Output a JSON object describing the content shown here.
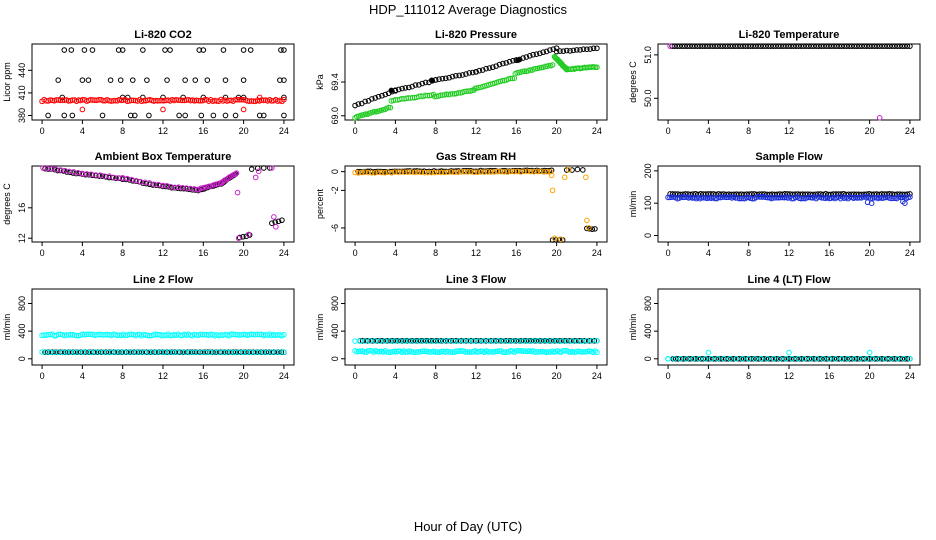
{
  "figure": {
    "title": "HDP_111012  Average Diagnostics",
    "xlabel": "Hour of Day (UTC)"
  },
  "chart_data": [
    {
      "type": "scatter",
      "title": "Li-820 CO2",
      "ylabel": "Licor ppm",
      "xlim": [
        -1,
        25
      ],
      "ylim": [
        374,
        475
      ],
      "xticks": [
        0,
        4,
        8,
        12,
        16,
        20,
        24
      ],
      "yticks": [
        380,
        410,
        440
      ],
      "yticklabels": [
        "380",
        "410",
        "440"
      ],
      "series": [
        {
          "color": "#000000",
          "x": [
            2.2,
            2.9,
            4.2,
            5.0,
            7.6,
            8.0,
            10.0,
            12.2,
            12.7,
            15.6,
            16.0,
            18.0,
            20.0,
            20.7,
            23.7,
            24.0
          ],
          "y": [
            467,
            467,
            467,
            467,
            467,
            467,
            467,
            467,
            467,
            467,
            467,
            467,
            467,
            467,
            467,
            467
          ]
        },
        {
          "color": "#000000",
          "x": [
            1.6,
            4.0,
            4.6,
            6.8,
            7.8,
            9.0,
            10.4,
            12.4,
            14.2,
            15.2,
            16.4,
            18.2,
            20.0,
            23.6,
            24.0
          ],
          "y": [
            427,
            427,
            427,
            427,
            427,
            427,
            427,
            427,
            427,
            427,
            427,
            427,
            427,
            427,
            427
          ]
        },
        {
          "color": "#000000",
          "x": [
            2.0,
            8.0,
            8.5,
            10.0,
            12.0,
            14.0,
            16.0,
            18.2,
            19.5,
            20.0,
            24.0
          ],
          "y": [
            404,
            404,
            404,
            404,
            404,
            404,
            404,
            404,
            404,
            404,
            404
          ]
        },
        {
          "color": "#000000",
          "x": [
            0.6,
            2.2,
            3.0,
            6.0,
            8.8,
            9.2,
            10.6,
            13.6,
            14.2,
            15.8,
            17.0,
            18.2,
            19.2,
            21.6,
            22.0,
            24.0
          ],
          "y": [
            380,
            380,
            380,
            380,
            380,
            380,
            380,
            380,
            380,
            380,
            380,
            380,
            380,
            380,
            380,
            380
          ]
        },
        {
          "color": "#ff0000",
          "dense": true,
          "xrange": [
            0,
            24
          ],
          "y": 400,
          "jitter": 1.2,
          "n": 120
        },
        {
          "color": "#ff0000",
          "x": [
            4.0,
            12.0,
            20.0,
            21.6
          ],
          "y": [
            388,
            388,
            388,
            404
          ]
        }
      ]
    },
    {
      "type": "scatter",
      "title": "Li-820 Pressure",
      "ylabel": "kPa",
      "xlim": [
        -1,
        25
      ],
      "ylim": [
        68.95,
        69.85
      ],
      "xticks": [
        0,
        4,
        8,
        12,
        16,
        20,
        24
      ],
      "yticks": [
        69.0,
        69.4
      ],
      "yticklabels": [
        "69.0",
        "69.4"
      ],
      "series": [
        {
          "color": "#000000",
          "segments": [
            [
              0,
              69.12,
              4,
              69.3
            ],
            [
              4,
              69.3,
              8,
              69.42
            ],
            [
              8,
              69.42,
              12,
              69.52
            ],
            [
              12,
              69.52,
              16,
              69.66
            ],
            [
              16,
              69.66,
              20,
              69.8
            ],
            [
              20,
              69.76,
              24,
              69.8
            ]
          ],
          "n": 75
        },
        {
          "color": "#22cc22",
          "segments": [
            [
              0,
              68.98,
              3.5,
              69.1
            ],
            [
              3.6,
              69.18,
              7.8,
              69.25
            ],
            [
              7.9,
              69.23,
              11.8,
              69.3
            ],
            [
              11.9,
              69.32,
              15.8,
              69.45
            ],
            [
              15.9,
              69.5,
              19.6,
              69.6
            ],
            [
              19.8,
              69.7,
              21.0,
              69.55
            ],
            [
              21.0,
              69.55,
              24,
              69.58
            ]
          ],
          "n": 150
        },
        {
          "color": "#000000",
          "x": [
            3.6,
            7.6,
            16.2
          ],
          "y": [
            69.3,
            69.42,
            69.66
          ],
          "filled": true
        }
      ]
    },
    {
      "type": "scatter",
      "title": "Li-820 Temperature",
      "ylabel": "degrees C",
      "xlim": [
        -1,
        25
      ],
      "ylim": [
        49.5,
        51.25
      ],
      "xticks": [
        0,
        4,
        8,
        12,
        16,
        20,
        24
      ],
      "yticks": [
        50.0,
        51.0
      ],
      "yticklabels": [
        "50.0",
        "51.0"
      ],
      "series": [
        {
          "color": "#000000",
          "dense": true,
          "xrange": [
            0.4,
            24
          ],
          "y": 51.2,
          "jitter": 0,
          "n": 95
        },
        {
          "color": "#cc22cc",
          "x": [
            0.2,
            21.0
          ],
          "y": [
            51.2,
            49.55
          ]
        }
      ]
    },
    {
      "type": "scatter",
      "title": "Ambient Box Temperature",
      "ylabel": "degrees C",
      "xlim": [
        -1,
        25
      ],
      "ylim": [
        11.5,
        21.5
      ],
      "xticks": [
        0,
        4,
        8,
        12,
        16,
        20,
        24
      ],
      "yticks": [
        12,
        16
      ],
      "yticklabels": [
        "12",
        "16"
      ],
      "series": [
        {
          "color": "#000000",
          "segments": [
            [
              0.3,
              21.2,
              4,
              20.4
            ],
            [
              4,
              20.4,
              8,
              19.8
            ],
            [
              8,
              19.8,
              12,
              18.8
            ],
            [
              12,
              18.8,
              15.5,
              18.3
            ],
            [
              15.5,
              18.3,
              17.8,
              19.2
            ],
            [
              17.8,
              19.2,
              19.2,
              20.5
            ]
          ],
          "n": 75
        },
        {
          "color": "#000000",
          "segments": [
            [
              19.6,
              12.1,
              20.6,
              12.4
            ],
            [
              20.8,
              21.1,
              22.6,
              21.4
            ],
            [
              22.8,
              14.0,
              23.8,
              14.4
            ]
          ],
          "n": 12
        },
        {
          "color": "#cc22cc",
          "segments": [
            [
              0.1,
              21.3,
              4,
              20.5
            ],
            [
              4,
              20.5,
              8,
              19.9
            ],
            [
              8,
              19.9,
              12,
              18.9
            ],
            [
              12,
              18.9,
              15.5,
              18.4
            ],
            [
              15.5,
              18.4,
              17.8,
              19.3
            ],
            [
              17.8,
              19.3,
              19.3,
              20.6
            ]
          ],
          "n": 60
        },
        {
          "color": "#cc22cc",
          "x": [
            19.4,
            19.5,
            20.5,
            21.2,
            21.5,
            22.8,
            23.0,
            23.2
          ],
          "y": [
            18.0,
            12.0,
            12.5,
            20.0,
            20.8,
            21.6,
            14.8,
            13.5
          ]
        }
      ]
    },
    {
      "type": "scatter",
      "title": "Gas Stream RH",
      "ylabel": "percent",
      "xlim": [
        -1,
        25
      ],
      "ylim": [
        -7.5,
        0.6
      ],
      "xticks": [
        0,
        4,
        8,
        12,
        16,
        20,
        24
      ],
      "yticks": [
        -6,
        -2,
        0
      ],
      "yticklabels": [
        "-6",
        "-2",
        "0"
      ],
      "series": [
        {
          "color": "#000000",
          "segments": [
            [
              0.3,
              0.0,
              19.5,
              0.1
            ]
          ],
          "n": 80
        },
        {
          "color": "#000000",
          "segments": [
            [
              19.6,
              -7.4,
              20.6,
              -7.4
            ],
            [
              21.0,
              0.2,
              22.6,
              0.2
            ],
            [
              23.0,
              -6.1,
              23.8,
              -6.1
            ]
          ],
          "n": 12
        },
        {
          "color": "#ffa500",
          "segments": [
            [
              0.0,
              -0.1,
              19.4,
              0.0
            ]
          ],
          "n": 60
        },
        {
          "color": "#ffa500",
          "x": [
            19.5,
            19.6,
            19.8,
            20.4,
            20.8,
            21.2,
            22.9,
            23.0,
            23.2
          ],
          "y": [
            -0.4,
            -2.0,
            -7.1,
            -7.2,
            -0.6,
            0.2,
            -0.6,
            -5.2,
            -6.0
          ]
        }
      ]
    },
    {
      "type": "scatter",
      "title": "Sample Flow",
      "ylabel": "ml/min",
      "xlim": [
        -1,
        25
      ],
      "ylim": [
        -20,
        215
      ],
      "xticks": [
        0,
        4,
        8,
        12,
        16,
        20,
        24
      ],
      "yticks": [
        0,
        100,
        200
      ],
      "yticklabels": [
        "0",
        "100",
        "200"
      ],
      "series": [
        {
          "color": "#000000",
          "dense": true,
          "xrange": [
            0.2,
            24
          ],
          "y": 128,
          "jitter": 1,
          "n": 95
        },
        {
          "color": "#1a2ed9",
          "dense": true,
          "xrange": [
            0,
            24
          ],
          "y": 117,
          "jitter": 3,
          "n": 130
        },
        {
          "color": "#1a2ed9",
          "x": [
            19.8,
            20.2,
            23.3,
            23.5
          ],
          "y": [
            103,
            100,
            105,
            100
          ]
        }
      ]
    },
    {
      "type": "scatter",
      "title": "Line 2 Flow",
      "ylabel": "ml/min",
      "xlim": [
        -1,
        25
      ],
      "ylim": [
        -90,
        1010
      ],
      "xticks": [
        0,
        4,
        8,
        12,
        16,
        20,
        24
      ],
      "yticks": [
        0,
        400,
        800
      ],
      "yticklabels": [
        "0",
        "400",
        "800"
      ],
      "series": [
        {
          "color": "#00ffff",
          "dense": true,
          "xrange": [
            0,
            24
          ],
          "y": 345,
          "jitter": 12,
          "n": 120
        },
        {
          "color": "#000000",
          "dense": true,
          "xrange": [
            0.3,
            24
          ],
          "y": 95,
          "jitter": 0,
          "n": 95
        },
        {
          "color": "#00ffff",
          "dense": true,
          "xrange": [
            0,
            24
          ],
          "y": 95,
          "jitter": 3,
          "n": 60
        }
      ]
    },
    {
      "type": "scatter",
      "title": "Line 3 Flow",
      "ylabel": "ml/min",
      "xlim": [
        -1,
        25
      ],
      "ylim": [
        -90,
        1010
      ],
      "xticks": [
        0,
        4,
        8,
        12,
        16,
        20,
        24
      ],
      "yticks": [
        0,
        400,
        800
      ],
      "yticklabels": [
        "0",
        "400",
        "800"
      ],
      "series": [
        {
          "color": "#000000",
          "dense": true,
          "xrange": [
            0.5,
            24
          ],
          "y": 260,
          "jitter": 0,
          "n": 95
        },
        {
          "color": "#00ffff",
          "dense": true,
          "xrange": [
            0,
            24
          ],
          "y": 258,
          "jitter": 3,
          "n": 50
        },
        {
          "color": "#00ffff",
          "dense": true,
          "xrange": [
            0,
            24
          ],
          "y": 105,
          "jitter": 12,
          "n": 130
        }
      ]
    },
    {
      "type": "scatter",
      "title": "Line 4 (LT) Flow",
      "ylabel": "ml/min",
      "xlim": [
        -1,
        25
      ],
      "ylim": [
        -90,
        1010
      ],
      "xticks": [
        0,
        4,
        8,
        12,
        16,
        20,
        24
      ],
      "yticks": [
        0,
        400,
        800
      ],
      "yticklabels": [
        "0",
        "400",
        "800"
      ],
      "series": [
        {
          "color": "#000000",
          "dense": true,
          "xrange": [
            0.5,
            24
          ],
          "y": 0,
          "jitter": 0,
          "n": 95
        },
        {
          "color": "#00ffff",
          "dense": true,
          "xrange": [
            0,
            24
          ],
          "y": 0,
          "jitter": 2,
          "n": 40
        },
        {
          "color": "#00ffff",
          "x": [
            0.0,
            4.0,
            12.0,
            20.0
          ],
          "y": [
            0,
            90,
            90,
            90
          ]
        }
      ]
    }
  ]
}
